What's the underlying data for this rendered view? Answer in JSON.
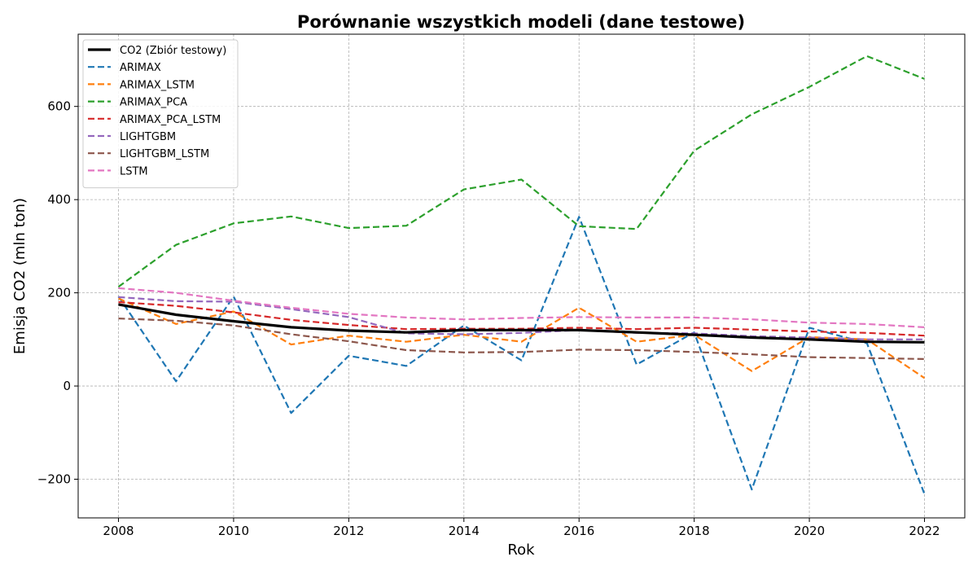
{
  "chart_data": {
    "type": "line",
    "title": "Porównanie wszystkich modeli (dane testowe)",
    "xlabel": "Rok",
    "ylabel": "Emisja CO2 (mln ton)",
    "xlim": [
      2007.3,
      2022.7
    ],
    "ylim": [
      -283,
      755
    ],
    "xticks": [
      2008,
      2010,
      2012,
      2014,
      2016,
      2018,
      2020,
      2022
    ],
    "xtick_labels": [
      "2008",
      "2010",
      "2012",
      "2014",
      "2016",
      "2018",
      "2020",
      "2022"
    ],
    "yticks": [
      -200,
      0,
      200,
      400,
      600
    ],
    "ytick_labels": [
      "−200",
      "0",
      "200",
      "400",
      "600"
    ],
    "grid": true,
    "legend_position": "upper-left",
    "x": [
      2008,
      2009,
      2010,
      2011,
      2012,
      2013,
      2014,
      2015,
      2016,
      2017,
      2018,
      2019,
      2020,
      2021,
      2022
    ],
    "series": [
      {
        "name": "CO2 (Zbiór testowy)",
        "color": "#000000",
        "style": "solid",
        "values": [
          175,
          153,
          139,
          126,
          119,
          115,
          120,
          120,
          120,
          115,
          110,
          104,
          100,
          95,
          94
        ]
      },
      {
        "name": "ARIMAX",
        "color": "#1f77b4",
        "style": "dashed",
        "values": [
          192,
          10,
          192,
          -58,
          65,
          43,
          130,
          55,
          363,
          46,
          115,
          -222,
          125,
          92,
          -232
        ]
      },
      {
        "name": "ARIMAX_LSTM",
        "color": "#ff7f0e",
        "style": "dashed",
        "values": [
          188,
          133,
          160,
          89,
          108,
          95,
          110,
          95,
          168,
          95,
          110,
          32,
          105,
          100,
          17
        ]
      },
      {
        "name": "ARIMAX_PCA",
        "color": "#2ca02c",
        "style": "dashed",
        "values": [
          213,
          303,
          349,
          364,
          339,
          344,
          422,
          443,
          343,
          337,
          505,
          583,
          642,
          708,
          659
        ]
      },
      {
        "name": "ARIMAX_PCA_LSTM",
        "color": "#d62728",
        "style": "dashed",
        "values": [
          180,
          172,
          158,
          142,
          131,
          122,
          123,
          123,
          125,
          122,
          125,
          121,
          117,
          114,
          108
        ]
      },
      {
        "name": "LIGHTGBM",
        "color": "#9467bd",
        "style": "dashed",
        "values": [
          191,
          182,
          181,
          165,
          148,
          113,
          111,
          114,
          120,
          114,
          113,
          107,
          104,
          100,
          100
        ]
      },
      {
        "name": "LIGHTGBM_LSTM",
        "color": "#8c564b",
        "style": "dashed",
        "values": [
          145,
          140,
          130,
          111,
          96,
          77,
          72,
          73,
          78,
          77,
          73,
          68,
          62,
          60,
          58
        ]
      },
      {
        "name": "LSTM",
        "color": "#e377c2",
        "style": "dashed",
        "values": [
          210,
          200,
          183,
          168,
          155,
          147,
          143,
          146,
          148,
          147,
          147,
          143,
          136,
          133,
          126
        ]
      }
    ]
  }
}
